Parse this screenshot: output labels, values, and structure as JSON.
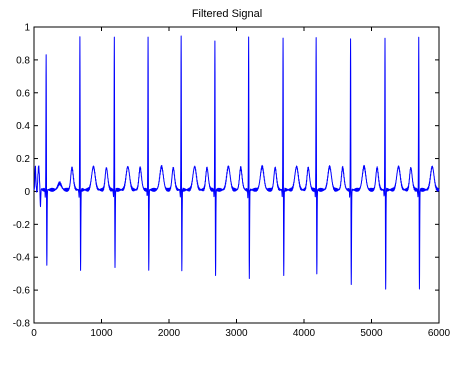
{
  "chart_data": {
    "type": "line",
    "title": "Filtered Signal",
    "xlabel": "",
    "ylabel": "",
    "xlim": [
      0,
      6000
    ],
    "ylim": [
      -0.8,
      1
    ],
    "x_ticks": [
      "0",
      "1000",
      "2000",
      "3000",
      "4000",
      "5000",
      "6000"
    ],
    "y_ticks": [
      "-0.8",
      "-0.6",
      "-0.4",
      "-0.2",
      "0",
      "0.2",
      "0.4",
      "0.6",
      "0.8",
      "1"
    ],
    "grid": false,
    "legend": "none",
    "line_color": "#0000ff",
    "baseline": 0.01,
    "beats": [
      {
        "r": 180,
        "peak": 0.85,
        "trough": -0.46,
        "p": 0.03,
        "t": 0.04
      },
      {
        "r": 680,
        "peak": 0.95,
        "trough": -0.48,
        "p": 0.06,
        "t": 0.14
      },
      {
        "r": 1190,
        "peak": 0.95,
        "trough": -0.47,
        "p": 0.06,
        "t": 0.14
      },
      {
        "r": 1690,
        "peak": 0.95,
        "trough": -0.49,
        "p": 0.06,
        "t": 0.14
      },
      {
        "r": 2180,
        "peak": 0.95,
        "trough": -0.48,
        "p": 0.06,
        "t": 0.14
      },
      {
        "r": 2680,
        "peak": 0.93,
        "trough": -0.52,
        "p": 0.06,
        "t": 0.14
      },
      {
        "r": 3180,
        "peak": 0.95,
        "trough": -0.53,
        "p": 0.06,
        "t": 0.14
      },
      {
        "r": 3690,
        "peak": 0.95,
        "trough": -0.52,
        "p": 0.06,
        "t": 0.14
      },
      {
        "r": 4180,
        "peak": 0.95,
        "trough": -0.51,
        "p": 0.06,
        "t": 0.14
      },
      {
        "r": 4690,
        "peak": 0.95,
        "trough": -0.58,
        "p": 0.06,
        "t": 0.14
      },
      {
        "r": 5200,
        "peak": 0.95,
        "trough": -0.61,
        "p": 0.06,
        "t": 0.14
      },
      {
        "r": 5700,
        "peak": 0.95,
        "trough": -0.6,
        "p": 0.06,
        "t": 0.14
      }
    ]
  }
}
